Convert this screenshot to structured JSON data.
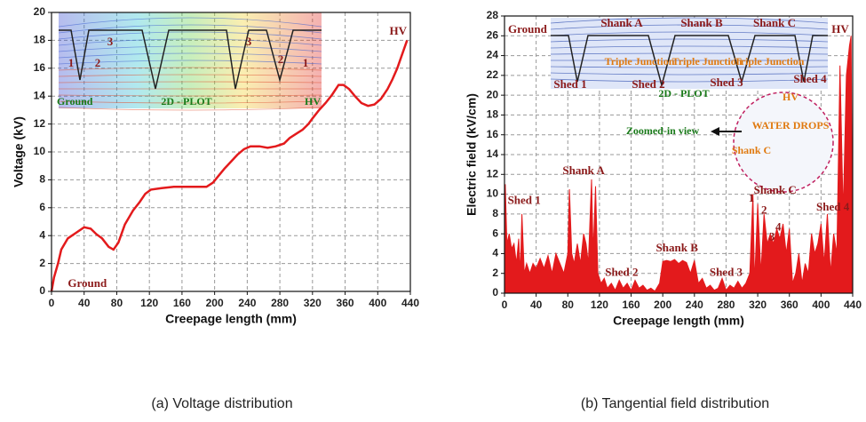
{
  "chart_data": [
    {
      "type": "line",
      "caption": "(a)   Voltage distribution",
      "xlabel": "Creepage length (mm)",
      "ylabel": "Voltage (kV)",
      "x": [
        0,
        3,
        8,
        12,
        20,
        30,
        40,
        48,
        55,
        62,
        70,
        76,
        82,
        90,
        100,
        108,
        115,
        122,
        135,
        150,
        165,
        180,
        190,
        198,
        205,
        212,
        220,
        228,
        236,
        244,
        255,
        265,
        275,
        285,
        292,
        300,
        308,
        315,
        320,
        328,
        336,
        344,
        352,
        358,
        365,
        372,
        380,
        388,
        396,
        404,
        412,
        418,
        424,
        430,
        436
      ],
      "values": [
        0,
        1,
        2,
        3,
        3.8,
        4.2,
        4.6,
        4.5,
        4.1,
        3.8,
        3.2,
        3.0,
        3.5,
        4.8,
        5.8,
        6.4,
        7.0,
        7.3,
        7.4,
        7.5,
        7.5,
        7.5,
        7.5,
        7.8,
        8.3,
        8.8,
        9.3,
        9.8,
        10.2,
        10.4,
        10.4,
        10.3,
        10.4,
        10.6,
        11.0,
        11.3,
        11.6,
        12.0,
        12.4,
        13.0,
        13.5,
        14.1,
        14.8,
        14.8,
        14.5,
        14.0,
        13.5,
        13.3,
        13.4,
        13.8,
        14.5,
        15.2,
        16.0,
        17.0,
        18.0
      ],
      "color": "#e31a1c",
      "xlim": [
        0,
        440
      ],
      "ylim": [
        0,
        20
      ],
      "xticks": [
        0,
        40,
        80,
        120,
        160,
        200,
        240,
        280,
        320,
        360,
        400,
        440
      ],
      "yticks": [
        0,
        2,
        4,
        6,
        8,
        10,
        12,
        14,
        16,
        18,
        20
      ],
      "grid": true,
      "annotations": [
        "Ground",
        "HV"
      ],
      "inset_labels": [
        "Ground",
        "2D - PLOT",
        "HV",
        "1",
        "2",
        "3",
        "3",
        "2",
        "1"
      ]
    },
    {
      "type": "area",
      "caption": "(b)   Tangential field distribution",
      "xlabel": "Creepage length (mm)",
      "ylabel": "Electric field (kV/cm)",
      "x": [
        0,
        1,
        3,
        6,
        9,
        12,
        15,
        18,
        20,
        22,
        25,
        28,
        32,
        36,
        40,
        45,
        50,
        55,
        60,
        65,
        70,
        75,
        80,
        82,
        85,
        88,
        92,
        96,
        100,
        103,
        106,
        110,
        112,
        115,
        118,
        122,
        126,
        130,
        135,
        140,
        145,
        150,
        155,
        160,
        165,
        170,
        175,
        180,
        185,
        190,
        196,
        200,
        205,
        210,
        215,
        220,
        225,
        230,
        235,
        240,
        245,
        250,
        255,
        260,
        265,
        270,
        275,
        280,
        285,
        290,
        295,
        300,
        305,
        310,
        314,
        316,
        320,
        324,
        328,
        332,
        336,
        340,
        344,
        348,
        352,
        356,
        360,
        364,
        368,
        372,
        376,
        380,
        384,
        388,
        392,
        396,
        400,
        404,
        408,
        412,
        416,
        420,
        424,
        428,
        432,
        436,
        438,
        440
      ],
      "values": [
        2,
        11,
        5,
        6,
        4.5,
        5,
        3,
        5.5,
        2,
        8,
        2,
        3,
        2,
        3,
        2.5,
        3.5,
        2.5,
        3.8,
        2,
        4,
        3,
        2,
        4,
        10.5,
        4,
        3,
        5,
        3,
        6,
        5,
        3,
        11.5,
        4,
        10.8,
        2,
        1,
        1.5,
        0.5,
        1,
        0.3,
        1.3,
        0.5,
        1.0,
        0.3,
        1.3,
        0.5,
        0.8,
        0.3,
        0.5,
        0.2,
        1,
        3.2,
        3.3,
        3.2,
        3.4,
        3.0,
        3.3,
        3.1,
        2.0,
        3.3,
        1,
        1.5,
        0.5,
        0.8,
        0.3,
        0.5,
        1.5,
        0.3,
        0.8,
        0.5,
        1.2,
        0.5,
        1,
        2,
        10,
        1,
        9,
        2,
        8,
        5,
        6,
        5,
        6.5,
        5.5,
        7,
        4,
        6.5,
        1,
        2,
        4,
        1,
        3,
        2,
        6,
        4,
        5,
        7,
        3,
        8,
        2,
        6,
        4,
        23,
        8,
        22,
        25,
        26,
        2
      ],
      "color": "#e31a1c",
      "xlim": [
        0,
        440
      ],
      "ylim": [
        0,
        28
      ],
      "xticks": [
        0,
        40,
        80,
        120,
        160,
        200,
        240,
        280,
        320,
        360,
        400,
        440
      ],
      "yticks": [
        0,
        2,
        4,
        6,
        8,
        10,
        12,
        14,
        16,
        18,
        20,
        22,
        24,
        26,
        28
      ],
      "grid": true,
      "annotations": [
        "Shed 1",
        "Shank A",
        "Shed 2",
        "Shank B",
        "Shed 3",
        "Shank C",
        "Shed 4",
        "1",
        "2",
        "3",
        "4"
      ],
      "inset_labels": [
        "Ground",
        "Shank A",
        "Shank B",
        "Shank C",
        "HV",
        "Triple Junction",
        "Triple Junction",
        "Triple Junction",
        "Shed 1",
        "Shed 2",
        "Shed 3",
        "Shed 4",
        "2D - PLOT",
        "Zoomed-in view",
        "HV",
        "WATER DROPS",
        "Shank C"
      ]
    }
  ]
}
